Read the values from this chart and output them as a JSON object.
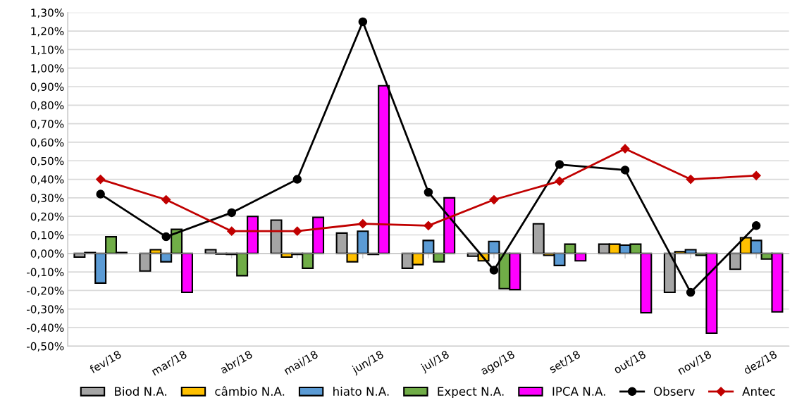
{
  "chart_data": {
    "type": "bar",
    "categories": [
      "fev/18",
      "mar/18",
      "abr/18",
      "mai/18",
      "jun/18",
      "jul/18",
      "ago/18",
      "set/18",
      "out/18",
      "nov/18",
      "dez/18"
    ],
    "series": [
      {
        "name": "Biod N.A.",
        "color": "#a5a5a5",
        "values": [
          -0.02,
          -0.095,
          0.02,
          0.18,
          0.11,
          -0.08,
          -0.015,
          0.16,
          0.05,
          -0.21,
          -0.085
        ]
      },
      {
        "name": "câmbio N.A.",
        "color": "#ffc000",
        "values": [
          0.005,
          0.02,
          -0.003,
          -0.02,
          -0.045,
          -0.06,
          -0.04,
          -0.01,
          0.05,
          0.01,
          0.085
        ]
      },
      {
        "name": "hiato N.A.",
        "color": "#5b9bd5",
        "values": [
          -0.16,
          -0.045,
          -0.005,
          -0.005,
          0.12,
          0.07,
          0.065,
          -0.065,
          0.045,
          0.02,
          0.07
        ]
      },
      {
        "name": "Expect N.A.",
        "color": "#70ad47",
        "values": [
          0.09,
          0.13,
          -0.12,
          -0.08,
          -0.005,
          -0.045,
          -0.19,
          0.05,
          0.05,
          -0.01,
          -0.03
        ]
      },
      {
        "name": "IPCA N.A.",
        "color": "#ff00ff",
        "values": [
          0.005,
          -0.21,
          0.2,
          0.195,
          0.905,
          0.3,
          -0.195,
          -0.04,
          -0.32,
          -0.43,
          -0.315
        ]
      },
      {
        "name": "Observ",
        "type": "line",
        "marker": "circle",
        "color": "#000000",
        "values": [
          0.32,
          0.09,
          0.22,
          0.4,
          1.25,
          0.33,
          -0.09,
          0.48,
          0.45,
          -0.21,
          0.15
        ]
      },
      {
        "name": "Antec",
        "type": "line",
        "marker": "diamond",
        "color": "#c00000",
        "values": [
          0.4,
          0.29,
          0.12,
          0.12,
          0.16,
          0.15,
          0.29,
          0.39,
          0.565,
          0.4,
          0.42
        ]
      }
    ],
    "ylim": [
      -0.5,
      1.3
    ],
    "yticks": [
      {
        "value": -0.5,
        "label": "-0,50%"
      },
      {
        "value": -0.4,
        "label": "-0,40%"
      },
      {
        "value": -0.3,
        "label": "-0,30%"
      },
      {
        "value": -0.2,
        "label": "-0,20%"
      },
      {
        "value": -0.1,
        "label": "-0,10%"
      },
      {
        "value": 0,
        "label": "0,00%"
      },
      {
        "value": 0.1,
        "label": "0,10%"
      },
      {
        "value": 0.2,
        "label": "0,20%"
      },
      {
        "value": 0.3,
        "label": "0,30%"
      },
      {
        "value": 0.4,
        "label": "0,40%"
      },
      {
        "value": 0.5,
        "label": "0,50%"
      },
      {
        "value": 0.6,
        "label": "0,60%"
      },
      {
        "value": 0.7,
        "label": "0,70%"
      },
      {
        "value": 0.8,
        "label": "0,80%"
      },
      {
        "value": 0.9,
        "label": "0,90%"
      },
      {
        "value": 1.0,
        "label": "1,00%"
      },
      {
        "value": 1.1,
        "label": "1,10%"
      },
      {
        "value": 1.2,
        "label": "1,20%"
      },
      {
        "value": 1.3,
        "label": "1,30%"
      }
    ],
    "grid": "y",
    "legend": "bottom"
  }
}
